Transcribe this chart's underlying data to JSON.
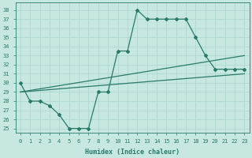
{
  "title": "",
  "xlabel": "Humidex (Indice chaleur)",
  "ylabel": "",
  "background_color": "#c6e8e0",
  "grid_color": "#b0d8d0",
  "line_color": "#2a7a6a",
  "xlim": [
    -0.5,
    23.5
  ],
  "ylim": [
    24.5,
    38.8
  ],
  "xticks": [
    0,
    1,
    2,
    3,
    4,
    5,
    6,
    7,
    8,
    9,
    10,
    11,
    12,
    13,
    14,
    15,
    16,
    17,
    18,
    19,
    20,
    21,
    22,
    23
  ],
  "yticks": [
    25,
    26,
    27,
    28,
    29,
    30,
    31,
    32,
    33,
    34,
    35,
    36,
    37,
    38
  ],
  "series": [
    {
      "x": [
        0,
        1,
        2,
        3,
        4,
        5,
        6,
        7,
        8,
        9,
        10,
        11,
        12,
        13,
        14,
        15,
        16,
        17,
        18,
        19,
        20,
        21,
        22,
        23
      ],
      "y": [
        30,
        28,
        28,
        27.5,
        26.5,
        25,
        25,
        25,
        29,
        29,
        33.5,
        33.5,
        38,
        37,
        37,
        37,
        37,
        37,
        35,
        33,
        31.5,
        31.5,
        31.5,
        31.5
      ]
    },
    {
      "x": [
        0,
        23
      ],
      "y": [
        29,
        33
      ]
    },
    {
      "x": [
        0,
        23
      ],
      "y": [
        29,
        31
      ]
    }
  ]
}
